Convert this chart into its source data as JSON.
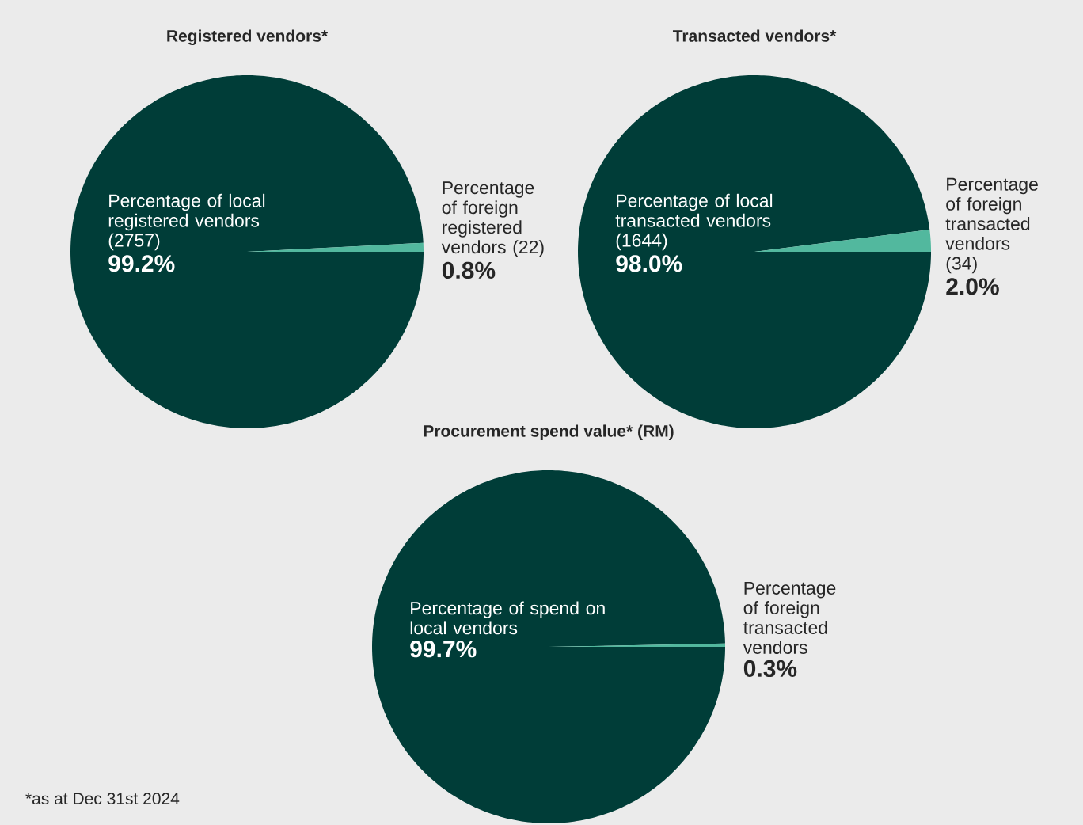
{
  "chart_data": [
    {
      "type": "pie",
      "title": "Registered vendors*",
      "categories": [
        "Percentage of local registered vendors (2757)",
        "Percentage of foreign registered vendors (22)"
      ],
      "values": [
        99.2,
        0.8
      ],
      "colors": [
        "#003d38",
        "#52b89e"
      ],
      "value_labels": [
        "99.2%",
        "0.8%"
      ]
    },
    {
      "type": "pie",
      "title": "Transacted vendors*",
      "categories": [
        "Percentage of local transacted vendors (1644)",
        "Percentage of foreign transacted vendors (34)"
      ],
      "values": [
        98.0,
        2.0
      ],
      "colors": [
        "#003d38",
        "#52b89e"
      ],
      "value_labels": [
        "98.0%",
        "2.0%"
      ]
    },
    {
      "type": "pie",
      "title": "Procurement spend value* (RM)",
      "categories": [
        "Percentage of spend on local vendors",
        "Percentage of foreign transacted vendors"
      ],
      "values": [
        99.7,
        0.3
      ],
      "colors": [
        "#003d38",
        "#52b89e"
      ],
      "value_labels": [
        "99.7%",
        "0.3%"
      ],
      "annotations": [
        "*as at Dec 31st 2024"
      ]
    }
  ]
}
